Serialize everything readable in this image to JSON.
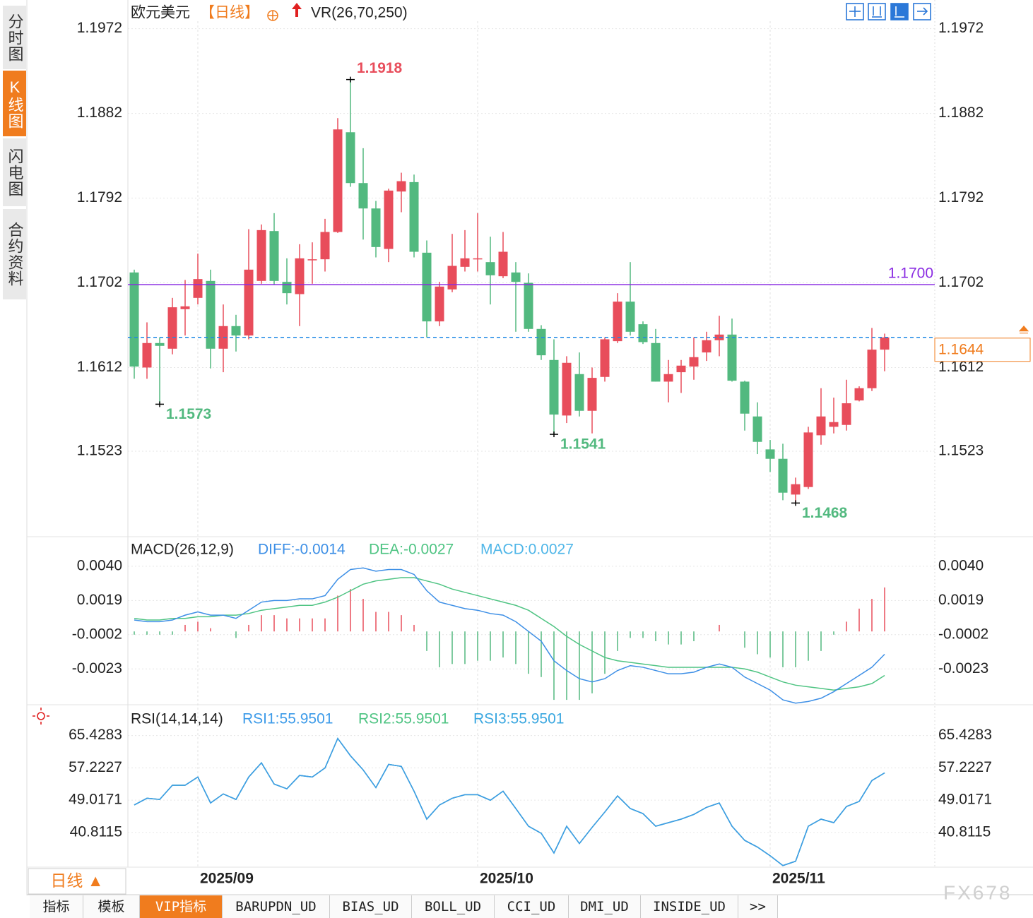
{
  "sidebar": {
    "tabs": [
      "分时图",
      "K线图",
      "闪电图",
      "合约资料"
    ]
  },
  "bottom_bar": {
    "period": "日线 ▲",
    "tabs": [
      "指标",
      "模板",
      "VIP指标",
      "BARUPDN_UD",
      "BIAS_UD",
      "BOLL_UD",
      "CCI_UD",
      "DMI_UD",
      "INSIDE_UD",
      ">>"
    ],
    "watermark": "FX678"
  },
  "chart_data": [
    {
      "type": "candlestick",
      "title": "欧元美元",
      "period": "【日线】",
      "indicator": "VR(26,70,250)",
      "categories": [
        null,
        null,
        null,
        null,
        null,
        "2025/09",
        null,
        null,
        null,
        null,
        null,
        null,
        null,
        null,
        null,
        null,
        null,
        null,
        null,
        null,
        null,
        null,
        null,
        null,
        null,
        null,
        null,
        "2025/10",
        null,
        null,
        null,
        null,
        null,
        null,
        null,
        null,
        null,
        null,
        null,
        null,
        null,
        null,
        null,
        null,
        null,
        null,
        null,
        null,
        null,
        null,
        "2025/11",
        null,
        null,
        null,
        null,
        null,
        null,
        null,
        null,
        null
      ],
      "open": [
        1.1713,
        1.1612,
        1.1638,
        1.1632,
        1.1674,
        1.1686,
        1.1704,
        1.1632,
        1.1656,
        1.1646,
        1.1704,
        1.1757,
        1.1703,
        1.169,
        1.1726,
        1.1727,
        1.1756,
        1.1862,
        1.1808,
        1.1781,
        1.1738,
        1.1799,
        1.1809,
        1.1734,
        1.1661,
        1.1695,
        1.1719,
        1.1727,
        1.1724,
        1.1709,
        1.1713,
        1.1702,
        1.1653,
        1.162,
        1.1561,
        1.1605,
        1.1566,
        1.1602,
        1.164,
        1.1682,
        1.1658,
        1.1638,
        1.1597,
        1.1607,
        1.1613,
        1.1628,
        1.1641,
        1.1647,
        1.1597,
        1.156,
        1.1525,
        1.1515,
        1.1477,
        1.1485,
        1.154,
        1.1549,
        1.1551,
        1.1577,
        1.159,
        1.1631
      ],
      "high": [
        1.1716,
        1.166,
        1.1644,
        1.1686,
        1.1705,
        1.1733,
        1.1716,
        1.1679,
        1.1668,
        1.1759,
        1.1764,
        1.1776,
        1.1728,
        1.1743,
        1.1745,
        1.177,
        1.1877,
        1.1918,
        1.1845,
        1.1789,
        1.1802,
        1.1819,
        1.1817,
        1.1747,
        1.1703,
        1.1754,
        1.1758,
        1.1776,
        1.1751,
        1.1756,
        1.1724,
        1.1712,
        1.1657,
        1.1642,
        1.1624,
        1.1628,
        1.1612,
        1.1644,
        1.1691,
        1.1724,
        1.1661,
        1.1653,
        1.162,
        1.162,
        1.1644,
        1.165,
        1.1667,
        1.1664,
        1.1598,
        1.1575,
        1.1535,
        1.1531,
        1.1495,
        1.1549,
        1.159,
        1.158,
        1.1599,
        1.1592,
        1.1654,
        1.1648
      ],
      "low": [
        1.16,
        1.16,
        1.1573,
        1.1626,
        1.1646,
        1.1679,
        1.1611,
        1.1607,
        1.1629,
        1.1642,
        1.1701,
        1.17,
        1.1679,
        1.1656,
        1.1701,
        1.1714,
        1.1755,
        1.1804,
        1.1748,
        1.1729,
        1.1724,
        1.1777,
        1.1729,
        1.1644,
        1.1656,
        1.1692,
        1.1714,
        1.1714,
        1.1679,
        1.1707,
        1.165,
        1.165,
        1.162,
        1.1541,
        1.1553,
        1.156,
        1.1542,
        1.1597,
        1.1638,
        1.1646,
        1.1637,
        1.1597,
        1.1575,
        1.1585,
        1.1599,
        1.1619,
        1.1624,
        1.1597,
        1.1545,
        1.152,
        1.1501,
        1.1471,
        1.1468,
        1.1483,
        1.153,
        1.1542,
        1.1545,
        1.1576,
        1.1587,
        1.1608
      ],
      "close": [
        1.1613,
        1.1638,
        1.1635,
        1.1676,
        1.1677,
        1.1706,
        1.1632,
        1.1656,
        1.1646,
        1.1716,
        1.1758,
        1.1704,
        1.1691,
        1.1728,
        1.1727,
        1.1756,
        1.1865,
        1.1808,
        1.1781,
        1.174,
        1.18,
        1.181,
        1.1735,
        1.1661,
        1.1698,
        1.172,
        1.1728,
        1.1728,
        1.171,
        1.1735,
        1.1703,
        1.1653,
        1.1625,
        1.1562,
        1.1617,
        1.1566,
        1.1601,
        1.1642,
        1.1682,
        1.165,
        1.1639,
        1.1597,
        1.1605,
        1.1614,
        1.1623,
        1.1641,
        1.1647,
        1.1598,
        1.1563,
        1.1533,
        1.1515,
        1.1479,
        1.1488,
        1.1543,
        1.156,
        1.1554,
        1.1574,
        1.159,
        1.1631,
        1.1644
      ],
      "up_color": "#e84d5b",
      "down_color": "#52b97f",
      "ylim": [
        1.1436,
        1.198
      ],
      "yticks": [
        1.1972,
        1.1882,
        1.1792,
        1.1702,
        1.1612,
        1.1523
      ],
      "grid": true,
      "high_low_marks": [
        1.1918,
        1.1573,
        1.1541,
        1.1468
      ],
      "reference_line": {
        "value": 1.17,
        "label": "1.1700",
        "color": "#8a2be2"
      },
      "last_price": 1.1644,
      "last_price_color": "#1e88e5",
      "last_price_box_color": "#f07c1e"
    },
    {
      "type": "macd",
      "title": "MACD(26,12,9)",
      "ylim": [
        -0.0045,
        0.0056
      ],
      "yticks": [
        {
          "value": 0.004,
          "label": "0.0040"
        },
        0.0019,
        -0.0002,
        -0.0023
      ],
      "grid": true,
      "series": [
        {
          "name": "DIFF:-0.0014",
          "color": "#3d8fe6",
          "values": [
            0.0007,
            0.0006,
            0.0006,
            0.0007,
            0.001,
            0.0012,
            0.001,
            0.001,
            0.0008,
            0.0013,
            0.0018,
            0.0019,
            0.0019,
            0.002,
            0.002,
            0.0022,
            0.0032,
            0.0038,
            0.0039,
            0.0037,
            0.0038,
            0.0038,
            0.0035,
            0.0025,
            0.0018,
            0.0016,
            0.0014,
            0.0013,
            0.0011,
            0.001,
            0.0006,
            0.0,
            -0.0006,
            -0.0018,
            -0.0024,
            -0.0029,
            -0.0031,
            -0.0029,
            -0.0024,
            -0.0021,
            -0.0022,
            -0.0024,
            -0.0026,
            -0.0026,
            -0.0025,
            -0.0022,
            -0.002,
            -0.0022,
            -0.0028,
            -0.0032,
            -0.0036,
            -0.0042,
            -0.0044,
            -0.0043,
            -0.0041,
            -0.0037,
            -0.0032,
            -0.0027,
            -0.0022,
            -0.0014
          ]
        },
        {
          "name": "DEA:-0.0027",
          "color": "#4fc483",
          "values": [
            0.0008,
            0.0007,
            0.0007,
            0.0008,
            0.0008,
            0.0009,
            0.0009,
            0.001,
            0.001,
            0.0011,
            0.0013,
            0.0014,
            0.0015,
            0.0016,
            0.0016,
            0.0018,
            0.0021,
            0.0025,
            0.0029,
            0.0031,
            0.0032,
            0.0033,
            0.0033,
            0.0031,
            0.0029,
            0.0026,
            0.0024,
            0.0022,
            0.002,
            0.0018,
            0.0016,
            0.0013,
            0.0008,
            0.0003,
            -0.0003,
            -0.0008,
            -0.0012,
            -0.0016,
            -0.0018,
            -0.0019,
            -0.002,
            -0.0021,
            -0.0022,
            -0.0022,
            -0.0022,
            -0.0022,
            -0.0022,
            -0.0022,
            -0.0023,
            -0.0025,
            -0.0028,
            -0.0031,
            -0.0033,
            -0.0034,
            -0.0035,
            -0.0036,
            -0.0035,
            -0.0034,
            -0.0032,
            -0.0027
          ]
        }
      ],
      "histogram": {
        "name": "MACD:0.0027",
        "color": "#4fb6e8",
        "up_color": "#e84d5b",
        "down_color": "#52b97f",
        "values": [
          -0.0002,
          -0.0002,
          -0.0002,
          -0.0002,
          0.0004,
          0.0006,
          0.0002,
          0,
          -0.0004,
          0.0004,
          0.001,
          0.001,
          0.0008,
          0.0008,
          0.0008,
          0.0008,
          0.0022,
          0.0026,
          0.002,
          0.0012,
          0.0012,
          0.001,
          0.0004,
          -0.0012,
          -0.0022,
          -0.002,
          -0.002,
          -0.0018,
          -0.0018,
          -0.0016,
          -0.002,
          -0.0026,
          -0.0028,
          -0.0042,
          -0.0042,
          -0.0042,
          -0.0038,
          -0.0026,
          -0.0012,
          -0.0004,
          -0.0004,
          -0.0006,
          -0.0008,
          -0.0008,
          -0.0006,
          0,
          0.0004,
          0,
          -0.001,
          -0.0014,
          -0.0016,
          -0.0022,
          -0.0022,
          -0.0018,
          -0.0012,
          -0.0002,
          0.0006,
          0.0014,
          0.002,
          0.0027
        ]
      }
    },
    {
      "type": "line",
      "title": "RSI(14,14,14)",
      "ylim": [
        32,
        72
      ],
      "yticks": [
        65.4283,
        57.2227,
        49.0171,
        40.8115
      ],
      "grid": true,
      "series": [
        {
          "name": "RSI1:55.9501",
          "color": "#3d9be9",
          "values": [
            47.8,
            49.5,
            49.2,
            52.8,
            52.8,
            54.9,
            48.3,
            50.6,
            49.2,
            54.9,
            58.5,
            53.1,
            51.9,
            55.3,
            54.9,
            57.2,
            64.7,
            60.3,
            56.7,
            52.2,
            58.1,
            57.6,
            51.3,
            44.2,
            47.8,
            49.5,
            50.4,
            50.4,
            49.0,
            51.3,
            46.9,
            42.4,
            40.6,
            35.6,
            42.4,
            38.0,
            42.1,
            46.0,
            50.1,
            46.9,
            45.6,
            42.4,
            43.3,
            44.2,
            45.4,
            47.2,
            48.3,
            42.4,
            38.8,
            37.1,
            34.9,
            32.4,
            33.5,
            42.4,
            44.2,
            43.3,
            47.4,
            48.7,
            54.0,
            55.9501
          ]
        },
        {
          "name": "RSI2:55.9501",
          "color": "#4fc483",
          "values": [
            47.8,
            49.5,
            49.2,
            52.8,
            52.8,
            54.9,
            48.3,
            50.6,
            49.2,
            54.9,
            58.5,
            53.1,
            51.9,
            55.3,
            54.9,
            57.2,
            64.7,
            60.3,
            56.7,
            52.2,
            58.1,
            57.6,
            51.3,
            44.2,
            47.8,
            49.5,
            50.4,
            50.4,
            49.0,
            51.3,
            46.9,
            42.4,
            40.6,
            35.6,
            42.4,
            38.0,
            42.1,
            46.0,
            50.1,
            46.9,
            45.6,
            42.4,
            43.3,
            44.2,
            45.4,
            47.2,
            48.3,
            42.4,
            38.8,
            37.1,
            34.9,
            32.4,
            33.5,
            42.4,
            44.2,
            43.3,
            47.4,
            48.7,
            54.0,
            55.9501
          ]
        },
        {
          "name": "RSI3:55.9501",
          "color": "#3aa7e0",
          "values": [
            47.8,
            49.5,
            49.2,
            52.8,
            52.8,
            54.9,
            48.3,
            50.6,
            49.2,
            54.9,
            58.5,
            53.1,
            51.9,
            55.3,
            54.9,
            57.2,
            64.7,
            60.3,
            56.7,
            52.2,
            58.1,
            57.6,
            51.3,
            44.2,
            47.8,
            49.5,
            50.4,
            50.4,
            49.0,
            51.3,
            46.9,
            42.4,
            40.6,
            35.6,
            42.4,
            38.0,
            42.1,
            46.0,
            50.1,
            46.9,
            45.6,
            42.4,
            43.3,
            44.2,
            45.4,
            47.2,
            48.3,
            42.4,
            38.8,
            37.1,
            34.9,
            32.4,
            33.5,
            42.4,
            44.2,
            43.3,
            47.4,
            48.7,
            54.0,
            55.9501
          ]
        }
      ]
    }
  ]
}
